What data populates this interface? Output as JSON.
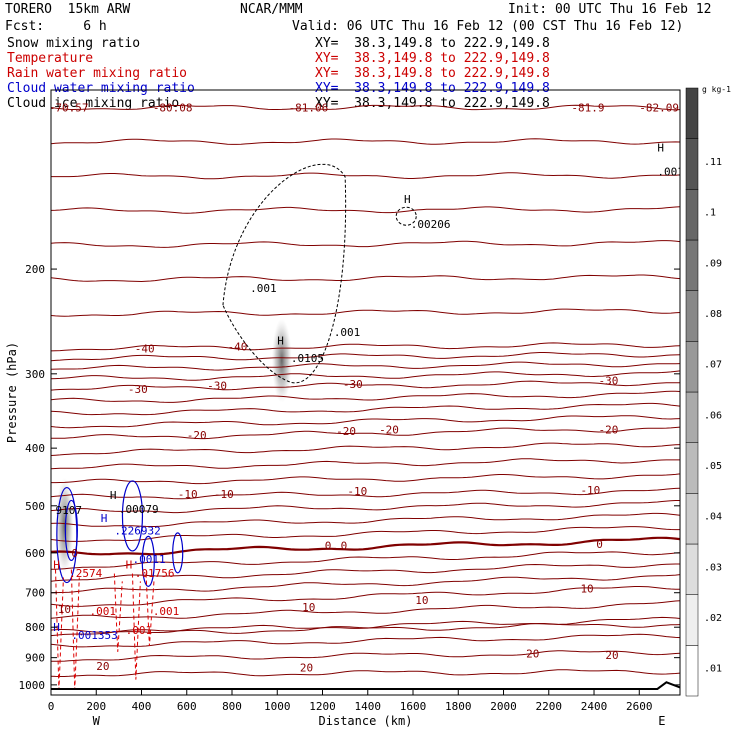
{
  "header": {
    "model": "TORERO  15km ARW",
    "center": "NCAR/MMM",
    "init": "Init: 00 UTC Thu 16 Feb 12",
    "fcst": "Fcst:     6 h",
    "valid": "Valid: 06 UTC Thu 16 Feb 12 (00 CST Thu 16 Feb 12)"
  },
  "legend": [
    {
      "label": "Snow mixing ratio",
      "xy": "XY=  38.3,149.8 to 222.9,149.8",
      "color": "#000000"
    },
    {
      "label": "Temperature",
      "xy": "XY=  38.3,149.8 to 222.9,149.8",
      "color": "#cc0000"
    },
    {
      "label": "Rain water mixing ratio",
      "xy": "XY=  38.3,149.8 to 222.9,149.8",
      "color": "#cc0000"
    },
    {
      "label": "Cloud water mixing ratio",
      "xy": "XY=  38.3,149.8 to 222.9,149.8",
      "color": "#0000cc"
    },
    {
      "label": "Cloud ice mixing ratio",
      "xy": "XY=  38.3,149.8 to 222.9,149.8",
      "color": "#000000"
    }
  ],
  "chart_data": {
    "type": "contour",
    "xlabel": "Distance (km)",
    "ylabel": "Pressure (hPa)",
    "xlim": [
      0,
      2780
    ],
    "ylim": [
      1040,
      100
    ],
    "y_scale": "log",
    "x_ticks": [
      0,
      200,
      400,
      600,
      800,
      1000,
      1200,
      1400,
      1600,
      1800,
      2000,
      2200,
      2400,
      2600
    ],
    "y_ticks": [
      200,
      300,
      400,
      500,
      600,
      700,
      800,
      900,
      1000
    ],
    "x_end_labels": {
      "left": "W",
      "right": "E"
    },
    "colorbar": {
      "unit": "g kg-1",
      "ticks": [
        ".01",
        ".02",
        ".03",
        ".04",
        ".05",
        ".06",
        ".07",
        ".08",
        ".09",
        ".1",
        ".11"
      ]
    },
    "temperature_contours": [
      {
        "level": "-80",
        "pressure": [
          107,
          107
        ]
      },
      {
        "level": "-40",
        "pressure": [
          272,
          268
        ]
      },
      {
        "level": "-30",
        "pressure": [
          318,
          310
        ]
      },
      {
        "level": "-20",
        "pressure": [
          385,
          370
        ]
      },
      {
        "level": "-10",
        "pressure": [
          484,
          472
        ]
      },
      {
        "level": "0",
        "pressure": [
          603,
          570
        ]
      },
      {
        "level": "10",
        "pressure": [
          735,
          685
        ]
      },
      {
        "level": "20",
        "pressure": [
          905,
          880
        ]
      }
    ],
    "labels": [
      {
        "text": "-70.57",
        "x": -10,
        "p": 107,
        "color": "#880000"
      },
      {
        "text": "-80.08",
        "x": 450,
        "p": 107,
        "color": "#880000"
      },
      {
        "text": "-81.06",
        "x": 1050,
        "p": 107,
        "color": "#880000"
      },
      {
        "text": "-81.9",
        "x": 2300,
        "p": 107,
        "color": "#880000"
      },
      {
        "text": "-82.09",
        "x": 2600,
        "p": 107,
        "color": "#880000"
      },
      {
        "text": "-40",
        "x": 370,
        "p": 272,
        "color": "#880000"
      },
      {
        "text": "-40",
        "x": 780,
        "p": 270,
        "color": "#880000"
      },
      {
        "text": "-30",
        "x": 340,
        "p": 318,
        "color": "#880000"
      },
      {
        "text": "-30",
        "x": 690,
        "p": 314,
        "color": "#880000"
      },
      {
        "text": "-30",
        "x": 1290,
        "p": 312,
        "color": "#880000"
      },
      {
        "text": "-30",
        "x": 2420,
        "p": 308,
        "color": "#880000"
      },
      {
        "text": "-20",
        "x": 600,
        "p": 380,
        "color": "#880000"
      },
      {
        "text": "-20",
        "x": 1260,
        "p": 374,
        "color": "#880000"
      },
      {
        "text": "-20",
        "x": 1450,
        "p": 372,
        "color": "#880000"
      },
      {
        "text": "-20",
        "x": 2420,
        "p": 372,
        "color": "#880000"
      },
      {
        "text": "-10",
        "x": 560,
        "p": 478,
        "color": "#880000"
      },
      {
        "text": "-10",
        "x": 720,
        "p": 478,
        "color": "#880000"
      },
      {
        "text": "-10",
        "x": 1310,
        "p": 472,
        "color": "#880000"
      },
      {
        "text": "-10",
        "x": 2340,
        "p": 470,
        "color": "#880000"
      },
      {
        "text": "0",
        "x": 90,
        "p": 600,
        "color": "#880000"
      },
      {
        "text": "0",
        "x": 1210,
        "p": 583,
        "color": "#880000"
      },
      {
        "text": "0",
        "x": 1280,
        "p": 583,
        "color": "#880000"
      },
      {
        "text": "0",
        "x": 2410,
        "p": 580,
        "color": "#880000"
      },
      {
        "text": "10",
        "x": 30,
        "p": 745,
        "color": "#880000"
      },
      {
        "text": "10",
        "x": 1110,
        "p": 740,
        "color": "#880000"
      },
      {
        "text": "10",
        "x": 1610,
        "p": 720,
        "color": "#880000"
      },
      {
        "text": "10",
        "x": 2340,
        "p": 688,
        "color": "#880000"
      },
      {
        "text": "20",
        "x": 200,
        "p": 930,
        "color": "#880000"
      },
      {
        "text": "20",
        "x": 1100,
        "p": 935,
        "color": "#880000"
      },
      {
        "text": "20",
        "x": 2100,
        "p": 885,
        "color": "#880000"
      },
      {
        "text": "20",
        "x": 2450,
        "p": 890,
        "color": "#880000"
      },
      {
        "text": ".001",
        "x": 880,
        "p": 215,
        "color": "#000000"
      },
      {
        "text": ".001",
        "x": 1250,
        "p": 255,
        "color": "#000000"
      },
      {
        "text": ".0105",
        "x": 1060,
        "p": 282,
        "color": "#000000"
      },
      {
        "text": ".00206",
        "x": 1590,
        "p": 168,
        "color": "#000000"
      },
      {
        "text": ".001",
        "x": 2680,
        "p": 137,
        "color": "#000000"
      },
      {
        "text": "9107",
        "x": 20,
        "p": 508,
        "color": "#000000"
      },
      {
        "text": ".00079",
        "x": 300,
        "p": 506,
        "color": "#000000"
      },
      {
        "text": ".226932",
        "x": 280,
        "p": 550,
        "color": "#0000cc"
      },
      {
        "text": ".0011",
        "x": 360,
        "p": 614,
        "color": "#0000cc"
      },
      {
        "text": ".2574",
        "x": 80,
        "p": 648,
        "color": "#cc0000"
      },
      {
        "text": ".01756",
        "x": 370,
        "p": 648,
        "color": "#cc0000"
      },
      {
        "text": ".001",
        "x": 170,
        "p": 752,
        "color": "#cc0000"
      },
      {
        "text": ".001",
        "x": 450,
        "p": 752,
        "color": "#cc0000"
      },
      {
        "text": ".001",
        "x": 330,
        "p": 808,
        "color": "#cc0000"
      },
      {
        "text": ".001353",
        "x": 90,
        "p": 825,
        "color": "#0000cc"
      }
    ],
    "maxima": [
      {
        "x": 1000,
        "p": 268,
        "color": "#000000"
      },
      {
        "x": 1560,
        "p": 155,
        "color": "#000000"
      },
      {
        "x": 2680,
        "p": 127,
        "color": "#000000"
      },
      {
        "x": 260,
        "p": 487,
        "color": "#000000"
      },
      {
        "x": 220,
        "p": 532,
        "color": "#0000cc"
      },
      {
        "x": 10,
        "p": 637,
        "color": "#cc0000"
      },
      {
        "x": 330,
        "p": 637,
        "color": "#cc0000"
      },
      {
        "x": 10,
        "p": 812,
        "color": "#0000cc"
      }
    ]
  }
}
